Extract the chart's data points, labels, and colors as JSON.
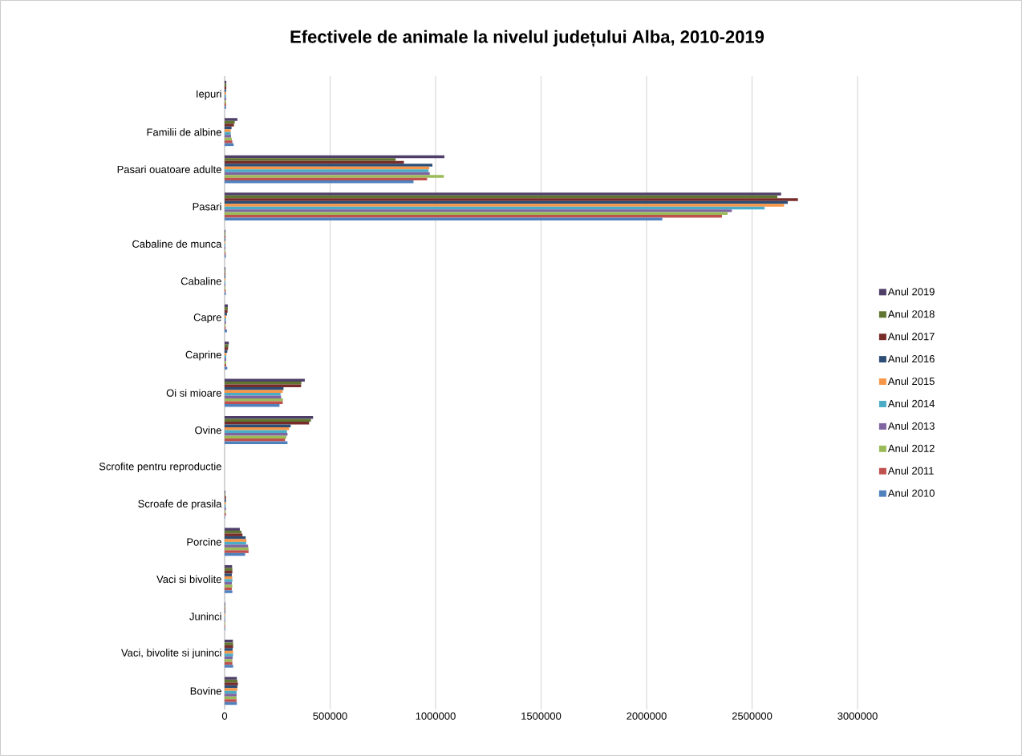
{
  "chart_data": {
    "type": "bar",
    "orientation": "horizontal",
    "title": "Efectivele de animale la nivelul județului Alba, 2010-2019",
    "categories": [
      "Iepuri",
      "Familii de albine",
      "Pasari ouatoare adulte",
      "Pasari",
      "Cabaline de munca",
      "Cabaline",
      "Capre",
      "Caprine",
      "Oi si mioare",
      "Ovine",
      "Scrofite pentru reproductie",
      "Scroafe de prasila",
      "Porcine",
      "Vaci si bivolite",
      "Juninci",
      "Vaci, bivolite si juninci",
      "Bovine"
    ],
    "series": [
      {
        "name": "Anul 2019",
        "color": "#4f3f68",
        "values": [
          8000,
          60600,
          1041700,
          2637700,
          4000,
          4000,
          15000,
          20000,
          380000,
          419300,
          0,
          3800,
          72000,
          35400,
          3000,
          39200,
          58100
        ]
      },
      {
        "name": "Anul 2018",
        "color": "#5f7530",
        "values": [
          8000,
          48000,
          810600,
          2620000,
          4000,
          4000,
          15000,
          17700,
          363700,
          409200,
          0,
          3800,
          79600,
          36600,
          3000,
          40400,
          60600
        ]
      },
      {
        "name": "Anul 2017",
        "color": "#772c2a",
        "values": [
          8000,
          44200,
          849700,
          2717400,
          4000,
          4000,
          14000,
          16400,
          362500,
          400400,
          0,
          6300,
          84600,
          36600,
          3000,
          40400,
          63200
        ]
      },
      {
        "name": "Anul 2016",
        "color": "#2c4d75",
        "values": [
          7000,
          32800,
          984900,
          2669300,
          4000,
          4000,
          11000,
          12600,
          279100,
          313200,
          0,
          6300,
          99800,
          34100,
          3000,
          37900,
          60600
        ]
      },
      {
        "name": "Anul 2015",
        "color": "#f79646",
        "values": [
          7000,
          29000,
          969700,
          2651600,
          4000,
          4000,
          7500,
          8800,
          275300,
          305600,
          0,
          6300,
          103600,
          36600,
          3000,
          40400,
          60600
        ]
      },
      {
        "name": "Anul 2014",
        "color": "#4bacc6",
        "values": [
          7000,
          29000,
          966000,
          2559400,
          4000,
          4000,
          6300,
          7600,
          265200,
          295500,
          0,
          5000,
          102300,
          36600,
          3000,
          40400,
          56800
        ]
      },
      {
        "name": "Anul 2013",
        "color": "#8064a2",
        "values": [
          7000,
          30300,
          972300,
          2404200,
          4000,
          4000,
          6300,
          7600,
          267800,
          298100,
          0,
          6300,
          111100,
          34100,
          3000,
          37900,
          56800
        ]
      },
      {
        "name": "Anul 2012",
        "color": "#9bbb59",
        "values": [
          7000,
          34100,
          1039100,
          2384000,
          4000,
          4000,
          5000,
          7600,
          276600,
          293000,
          0,
          5000,
          113700,
          36600,
          3000,
          36600,
          56800
        ]
      },
      {
        "name": "Anul 2011",
        "color": "#c0504d",
        "values": [
          7000,
          36600,
          959600,
          2357300,
          5000,
          5000,
          5000,
          7600,
          275300,
          286700,
          0,
          6300,
          113700,
          34100,
          3000,
          36600,
          56800
        ]
      },
      {
        "name": "Anul 2010",
        "color": "#4f81bd",
        "values": [
          7000,
          42900,
          895200,
          2074500,
          6000,
          6000,
          11000,
          12600,
          260200,
          298100,
          0,
          2500,
          97300,
          36600,
          3000,
          40400,
          58100
        ]
      }
    ],
    "xlim": [
      0,
      3000000
    ],
    "xticks": [
      0,
      500000,
      1000000,
      1500000,
      2000000,
      2500000,
      3000000
    ],
    "grid": "x",
    "legend": "right"
  }
}
